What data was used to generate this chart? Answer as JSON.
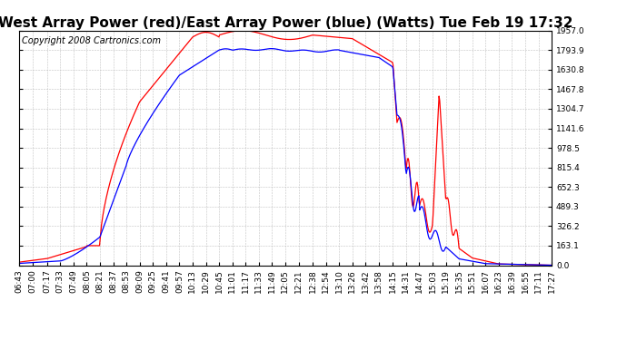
{
  "title": "West Array Power (red)/East Array Power (blue) (Watts) Tue Feb 19 17:32",
  "copyright": "Copyright 2008 Cartronics.com",
  "background_color": "#ffffff",
  "plot_background": "#ffffff",
  "grid_color": "#bbbbbb",
  "red_color": "#ff0000",
  "blue_color": "#0000ff",
  "ylim": [
    0.0,
    1957.0
  ],
  "yticks": [
    0.0,
    163.1,
    326.2,
    489.3,
    652.3,
    815.4,
    978.5,
    1141.6,
    1304.7,
    1467.8,
    1630.8,
    1793.9,
    1957.0
  ],
  "xtick_labels": [
    "06:43",
    "07:00",
    "07:17",
    "07:33",
    "07:49",
    "08:05",
    "08:21",
    "08:37",
    "08:53",
    "09:09",
    "09:25",
    "09:41",
    "09:57",
    "10:13",
    "10:29",
    "10:45",
    "11:01",
    "11:17",
    "11:33",
    "11:49",
    "12:05",
    "12:21",
    "12:38",
    "12:54",
    "13:10",
    "13:26",
    "13:42",
    "13:58",
    "14:15",
    "14:31",
    "14:47",
    "15:03",
    "15:19",
    "15:35",
    "15:51",
    "16:07",
    "16:23",
    "16:39",
    "16:55",
    "17:11",
    "17:27"
  ],
  "title_fontsize": 11,
  "copyright_fontsize": 7,
  "tick_fontsize": 6.5,
  "line_width": 0.9
}
